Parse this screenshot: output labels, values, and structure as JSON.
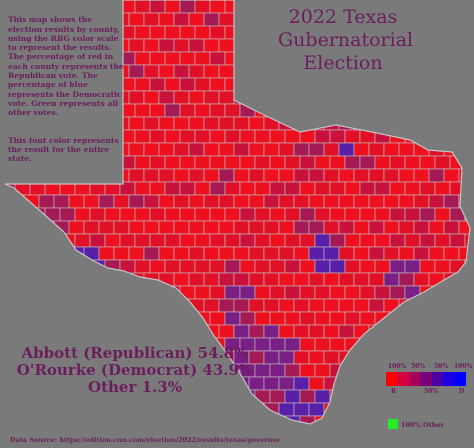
{
  "title": {
    "line1": "2022 Texas",
    "line2": "Gubernatorial",
    "line3": "Election"
  },
  "intro": {
    "paragraph1": "This map shows the election results by county, using the RBG color scale to represent the results. The percentage of red in each county represents the Republican vote. The percentage of blue represents the Democratic vote. Green represents all other votes.",
    "paragraph2": "This font color represents the result for the entire state."
  },
  "results": {
    "abbott": "Abbott (Republican) 54.8%",
    "orourke": "O'Rourke (Democrat) 43.9%",
    "other": "Other 1.3%"
  },
  "legend": {
    "label_r_pct": "100%",
    "label_r": "R",
    "label_50a": "50%",
    "label_50b": "50%",
    "label_50c": "50%",
    "label_d_pct": "100%",
    "label_d": "D",
    "other_label": "100% Other",
    "colors": [
      "#ff0000",
      "#d6003a",
      "#a8005a",
      "#7a007a",
      "#4c00a8",
      "#1a00e0",
      "#0000ff"
    ],
    "other_color": "#22ee22"
  },
  "source": "Data Source: https://edition.cnn.com/election/2022/results/texas/governor",
  "palette": {
    "strong_red": "#ee0f1f",
    "red": "#e21026",
    "red_mid": "#c8123c",
    "purple_red": "#a51a55",
    "purple": "#7a1f86",
    "blue_purple": "#5a1fa8",
    "border": "#c4c4c4",
    "text": "#6b1d5e"
  }
}
